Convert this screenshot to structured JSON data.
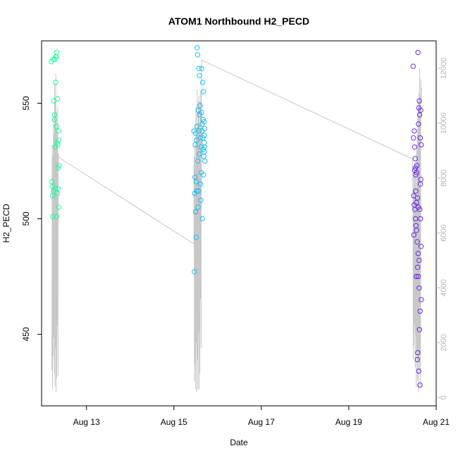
{
  "chart_data": {
    "type": "scatter",
    "title": "ATOM1 Northbound H2_PECD",
    "xlabel": "Date",
    "ylabel": "H2_PECD",
    "x_axis": {
      "type": "date",
      "range": [
        "2023-08-11T23:20",
        "2023-08-21T00:00"
      ],
      "ticks": [
        "Aug 13",
        "Aug 15",
        "Aug 17",
        "Aug 19",
        "Aug 21"
      ],
      "tick_values": [
        "2023-08-13",
        "2023-08-15",
        "2023-08-17",
        "2023-08-19",
        "2023-08-21"
      ]
    },
    "y_axis_left": {
      "range": [
        419,
        577
      ],
      "ticks": [
        450,
        500,
        550
      ]
    },
    "y_axis_right": {
      "range": [
        -300,
        13000
      ],
      "ticks": [
        0,
        2000,
        4000,
        6000,
        8000,
        10000,
        12000
      ],
      "color": "#bebebe"
    },
    "grid": false,
    "series": [
      {
        "color": "#1aff9c",
        "points": [
          {
            "x": "2023-08-12T04:45",
            "y": 568
          },
          {
            "x": "2023-08-12T05:00",
            "y": 516
          },
          {
            "x": "2023-08-12T05:15",
            "y": 514
          },
          {
            "x": "2023-08-12T05:25",
            "y": 510
          },
          {
            "x": "2023-08-12T05:30",
            "y": 501
          },
          {
            "x": "2023-08-12T05:40",
            "y": 569
          },
          {
            "x": "2023-08-12T05:50",
            "y": 512
          },
          {
            "x": "2023-08-12T06:05",
            "y": 551
          },
          {
            "x": "2023-08-12T06:20",
            "y": 543
          },
          {
            "x": "2023-08-12T06:25",
            "y": 545
          },
          {
            "x": "2023-08-12T06:40",
            "y": 569
          },
          {
            "x": "2023-08-12T06:50",
            "y": 531
          },
          {
            "x": "2023-08-12T06:55",
            "y": 513
          },
          {
            "x": "2023-08-12T07:05",
            "y": 559
          },
          {
            "x": "2023-08-12T07:10",
            "y": 570
          },
          {
            "x": "2023-08-12T07:20",
            "y": 570
          },
          {
            "x": "2023-08-12T07:25",
            "y": 540
          },
          {
            "x": "2023-08-12T07:35",
            "y": 501
          },
          {
            "x": "2023-08-12T07:40",
            "y": 572
          },
          {
            "x": "2023-08-12T07:50",
            "y": 533
          },
          {
            "x": "2023-08-12T07:55",
            "y": 511
          },
          {
            "x": "2023-08-12T08:05",
            "y": 552
          },
          {
            "x": "2023-08-12T08:10",
            "y": 532
          },
          {
            "x": "2023-08-12T08:20",
            "y": 513
          },
          {
            "x": "2023-08-12T08:25",
            "y": 522
          },
          {
            "x": "2023-08-12T08:30",
            "y": 538
          },
          {
            "x": "2023-08-12T08:40",
            "y": 505
          },
          {
            "x": "2023-08-12T08:50",
            "y": 534
          },
          {
            "x": "2023-08-12T09:00",
            "y": 523
          }
        ]
      },
      {
        "color": "#1ebbf2",
        "points": [
          {
            "x": "2023-08-15T11:00",
            "y": 538
          },
          {
            "x": "2023-08-15T11:15",
            "y": 477
          },
          {
            "x": "2023-08-15T11:25",
            "y": 511
          },
          {
            "x": "2023-08-15T11:35",
            "y": 518
          },
          {
            "x": "2023-08-15T11:40",
            "y": 532
          },
          {
            "x": "2023-08-15T11:50",
            "y": 503
          },
          {
            "x": "2023-08-15T12:00",
            "y": 537
          },
          {
            "x": "2023-08-15T12:10",
            "y": 516
          },
          {
            "x": "2023-08-15T12:15",
            "y": 492
          },
          {
            "x": "2023-08-15T12:25",
            "y": 534
          },
          {
            "x": "2023-08-15T12:35",
            "y": 512
          },
          {
            "x": "2023-08-15T12:40",
            "y": 540
          },
          {
            "x": "2023-08-15T12:45",
            "y": 574
          },
          {
            "x": "2023-08-15T13:00",
            "y": 571
          },
          {
            "x": "2023-08-15T13:05",
            "y": 525
          },
          {
            "x": "2023-08-15T13:15",
            "y": 505
          },
          {
            "x": "2023-08-15T13:20",
            "y": 547
          },
          {
            "x": "2023-08-15T13:30",
            "y": 512
          },
          {
            "x": "2023-08-15T13:40",
            "y": 565
          },
          {
            "x": "2023-08-15T13:45",
            "y": 538
          },
          {
            "x": "2023-08-15T13:55",
            "y": 528
          },
          {
            "x": "2023-08-15T14:00",
            "y": 562
          },
          {
            "x": "2023-08-15T14:10",
            "y": 545
          },
          {
            "x": "2023-08-15T14:20",
            "y": 549
          },
          {
            "x": "2023-08-15T14:30",
            "y": 535
          },
          {
            "x": "2023-08-15T14:35",
            "y": 515
          },
          {
            "x": "2023-08-15T14:45",
            "y": 508
          },
          {
            "x": "2023-08-15T14:55",
            "y": 531
          },
          {
            "x": "2023-08-15T15:00",
            "y": 520
          },
          {
            "x": "2023-08-15T15:10",
            "y": 546
          },
          {
            "x": "2023-08-15T15:15",
            "y": 565
          },
          {
            "x": "2023-08-15T15:25",
            "y": 538
          },
          {
            "x": "2023-08-15T15:30",
            "y": 541
          },
          {
            "x": "2023-08-15T15:40",
            "y": 500
          },
          {
            "x": "2023-08-15T15:50",
            "y": 559
          },
          {
            "x": "2023-08-15T15:55",
            "y": 535
          },
          {
            "x": "2023-08-15T16:00",
            "y": 543
          },
          {
            "x": "2023-08-15T16:05",
            "y": 530
          },
          {
            "x": "2023-08-15T16:10",
            "y": 519
          },
          {
            "x": "2023-08-15T16:20",
            "y": 555
          },
          {
            "x": "2023-08-15T16:25",
            "y": 527
          },
          {
            "x": "2023-08-15T16:30",
            "y": 542
          },
          {
            "x": "2023-08-15T16:35",
            "y": 533
          },
          {
            "x": "2023-08-15T16:40",
            "y": 536
          },
          {
            "x": "2023-08-15T16:45",
            "y": 529
          },
          {
            "x": "2023-08-15T16:50",
            "y": 539
          },
          {
            "x": "2023-08-15T16:55",
            "y": 531
          },
          {
            "x": "2023-08-15T17:00",
            "y": 525
          }
        ]
      },
      {
        "color": "#6a2be8",
        "points": [
          {
            "x": "2023-08-20T11:20",
            "y": 566
          },
          {
            "x": "2023-08-20T11:30",
            "y": 535
          },
          {
            "x": "2023-08-20T11:40",
            "y": 510
          },
          {
            "x": "2023-08-20T11:45",
            "y": 493
          },
          {
            "x": "2023-08-20T11:55",
            "y": 506
          },
          {
            "x": "2023-08-20T12:00",
            "y": 538
          },
          {
            "x": "2023-08-20T12:10",
            "y": 531
          },
          {
            "x": "2023-08-20T12:15",
            "y": 521
          },
          {
            "x": "2023-08-20T12:20",
            "y": 504
          },
          {
            "x": "2023-08-20T12:30",
            "y": 526
          },
          {
            "x": "2023-08-20T12:35",
            "y": 522
          },
          {
            "x": "2023-08-20T12:40",
            "y": 500
          },
          {
            "x": "2023-08-20T12:45",
            "y": 512
          },
          {
            "x": "2023-08-20T12:50",
            "y": 519
          },
          {
            "x": "2023-08-20T12:55",
            "y": 497
          },
          {
            "x": "2023-08-20T13:05",
            "y": 475
          },
          {
            "x": "2023-08-20T13:10",
            "y": 507
          },
          {
            "x": "2023-08-20T13:15",
            "y": 495
          },
          {
            "x": "2023-08-20T13:20",
            "y": 520
          },
          {
            "x": "2023-08-20T13:25",
            "y": 523
          },
          {
            "x": "2023-08-20T13:35",
            "y": 490
          },
          {
            "x": "2023-08-20T13:40",
            "y": 439
          },
          {
            "x": "2023-08-20T13:45",
            "y": 509
          },
          {
            "x": "2023-08-20T13:50",
            "y": 479
          },
          {
            "x": "2023-08-20T13:55",
            "y": 442
          },
          {
            "x": "2023-08-20T14:00",
            "y": 572
          },
          {
            "x": "2023-08-20T14:05",
            "y": 485
          },
          {
            "x": "2023-08-20T14:10",
            "y": 475
          },
          {
            "x": "2023-08-20T14:15",
            "y": 505
          },
          {
            "x": "2023-08-20T14:20",
            "y": 541
          },
          {
            "x": "2023-08-20T14:25",
            "y": 434
          },
          {
            "x": "2023-08-20T14:30",
            "y": 548
          },
          {
            "x": "2023-08-20T14:35",
            "y": 482
          },
          {
            "x": "2023-08-20T14:40",
            "y": 470
          },
          {
            "x": "2023-08-20T14:45",
            "y": 551
          },
          {
            "x": "2023-08-20T14:50",
            "y": 452
          },
          {
            "x": "2023-08-20T14:55",
            "y": 545
          },
          {
            "x": "2023-08-20T15:00",
            "y": 504
          },
          {
            "x": "2023-08-20T15:05",
            "y": 428
          },
          {
            "x": "2023-08-20T15:10",
            "y": 460
          },
          {
            "x": "2023-08-20T15:15",
            "y": 535
          },
          {
            "x": "2023-08-20T15:20",
            "y": 515
          },
          {
            "x": "2023-08-20T15:25",
            "y": 500
          },
          {
            "x": "2023-08-20T15:30",
            "y": 547
          },
          {
            "x": "2023-08-20T15:35",
            "y": 517
          },
          {
            "x": "2023-08-20T15:40",
            "y": 488
          },
          {
            "x": "2023-08-20T15:45",
            "y": 532
          },
          {
            "x": "2023-08-20T15:50",
            "y": 465
          }
        ]
      }
    ],
    "secondary_series": {
      "axis": "right",
      "color": "#c8c8c8",
      "points": [
        {
          "x": "2023-08-12T05:00",
          "y": 1000
        },
        {
          "x": "2023-08-12T05:10",
          "y": 9200
        },
        {
          "x": "2023-08-12T05:20",
          "y": 300
        },
        {
          "x": "2023-08-12T05:30",
          "y": 8800
        },
        {
          "x": "2023-08-12T05:40",
          "y": 1500
        },
        {
          "x": "2023-08-12T05:50",
          "y": 10200
        },
        {
          "x": "2023-08-12T06:00",
          "y": 2200
        },
        {
          "x": "2023-08-12T06:10",
          "y": 9600
        },
        {
          "x": "2023-08-12T06:20",
          "y": 900
        },
        {
          "x": "2023-08-12T06:30",
          "y": 11400
        },
        {
          "x": "2023-08-12T06:40",
          "y": 400
        },
        {
          "x": "2023-08-12T06:50",
          "y": 10800
        },
        {
          "x": "2023-08-12T07:00",
          "y": 1800
        },
        {
          "x": "2023-08-12T07:10",
          "y": 11800
        },
        {
          "x": "2023-08-12T07:20",
          "y": 200
        },
        {
          "x": "2023-08-12T07:30",
          "y": 10400
        },
        {
          "x": "2023-08-12T07:40",
          "y": 700
        },
        {
          "x": "2023-08-12T07:50",
          "y": 9600
        },
        {
          "x": "2023-08-12T08:00",
          "y": 2600
        },
        {
          "x": "2023-08-12T08:10",
          "y": 10600
        },
        {
          "x": "2023-08-12T08:20",
          "y": 800
        },
        {
          "x": "2023-08-12T08:30",
          "y": 8800
        },
        {
          "x": "2023-08-12T08:40",
          "y": 8900
        },
        {
          "x": "2023-08-12T08:50",
          "y": 8750
        },
        {
          "x": "2023-08-15T11:00",
          "y": 5600
        },
        {
          "x": "2023-08-15T11:05",
          "y": 8800
        },
        {
          "x": "2023-08-15T11:15",
          "y": 600
        },
        {
          "x": "2023-08-15T11:25",
          "y": 9200
        },
        {
          "x": "2023-08-15T11:35",
          "y": 1200
        },
        {
          "x": "2023-08-15T11:45",
          "y": 8500
        },
        {
          "x": "2023-08-15T11:55",
          "y": 300
        },
        {
          "x": "2023-08-15T12:05",
          "y": 10600
        },
        {
          "x": "2023-08-15T12:15",
          "y": 2000
        },
        {
          "x": "2023-08-15T12:25",
          "y": 9600
        },
        {
          "x": "2023-08-15T12:35",
          "y": 200
        },
        {
          "x": "2023-08-15T12:45",
          "y": 11200
        },
        {
          "x": "2023-08-15T12:55",
          "y": 1400
        },
        {
          "x": "2023-08-15T13:05",
          "y": 10000
        },
        {
          "x": "2023-08-15T13:15",
          "y": 300
        },
        {
          "x": "2023-08-15T13:25",
          "y": 10800
        },
        {
          "x": "2023-08-15T13:35",
          "y": 2400
        },
        {
          "x": "2023-08-15T13:45",
          "y": 11000
        },
        {
          "x": "2023-08-15T13:55",
          "y": 300
        },
        {
          "x": "2023-08-15T14:05",
          "y": 9600
        },
        {
          "x": "2023-08-15T14:15",
          "y": 900
        },
        {
          "x": "2023-08-15T14:25",
          "y": 10800
        },
        {
          "x": "2023-08-15T14:35",
          "y": 3600
        },
        {
          "x": "2023-08-15T14:45",
          "y": 11200
        },
        {
          "x": "2023-08-15T14:55",
          "y": 1800
        },
        {
          "x": "2023-08-15T15:05",
          "y": 10400
        },
        {
          "x": "2023-08-15T15:15",
          "y": 12300
        },
        {
          "x": "2023-08-20T11:00",
          "y": 8700
        },
        {
          "x": "2023-08-20T11:15",
          "y": 7900
        },
        {
          "x": "2023-08-20T11:25",
          "y": 1400
        },
        {
          "x": "2023-08-20T11:35",
          "y": 8200
        },
        {
          "x": "2023-08-20T11:45",
          "y": 1900
        },
        {
          "x": "2023-08-20T11:55",
          "y": 7600
        },
        {
          "x": "2023-08-20T12:05",
          "y": 2700
        },
        {
          "x": "2023-08-20T12:15",
          "y": 8600
        },
        {
          "x": "2023-08-20T12:25",
          "y": 1100
        },
        {
          "x": "2023-08-20T12:35",
          "y": 8100
        },
        {
          "x": "2023-08-20T12:45",
          "y": 2300
        },
        {
          "x": "2023-08-20T12:55",
          "y": 7400
        },
        {
          "x": "2023-08-20T13:05",
          "y": 400
        },
        {
          "x": "2023-08-20T13:15",
          "y": 9000
        },
        {
          "x": "2023-08-20T13:25",
          "y": 1700
        },
        {
          "x": "2023-08-20T13:35",
          "y": 9600
        },
        {
          "x": "2023-08-20T13:45",
          "y": 600
        },
        {
          "x": "2023-08-20T13:55",
          "y": 10200
        },
        {
          "x": "2023-08-20T14:05",
          "y": 1300
        },
        {
          "x": "2023-08-20T14:15",
          "y": 10800
        },
        {
          "x": "2023-08-20T14:25",
          "y": 200
        },
        {
          "x": "2023-08-20T14:35",
          "y": 11100
        },
        {
          "x": "2023-08-20T14:45",
          "y": 900
        },
        {
          "x": "2023-08-20T14:55",
          "y": 12000
        },
        {
          "x": "2023-08-20T15:05",
          "y": 1600
        },
        {
          "x": "2023-08-20T15:15",
          "y": 11000
        },
        {
          "x": "2023-08-20T15:25",
          "y": 400
        },
        {
          "x": "2023-08-20T15:35",
          "y": 11600
        },
        {
          "x": "2023-08-20T15:45",
          "y": 10800
        },
        {
          "x": "2023-08-20T15:55",
          "y": 11300
        }
      ]
    }
  }
}
